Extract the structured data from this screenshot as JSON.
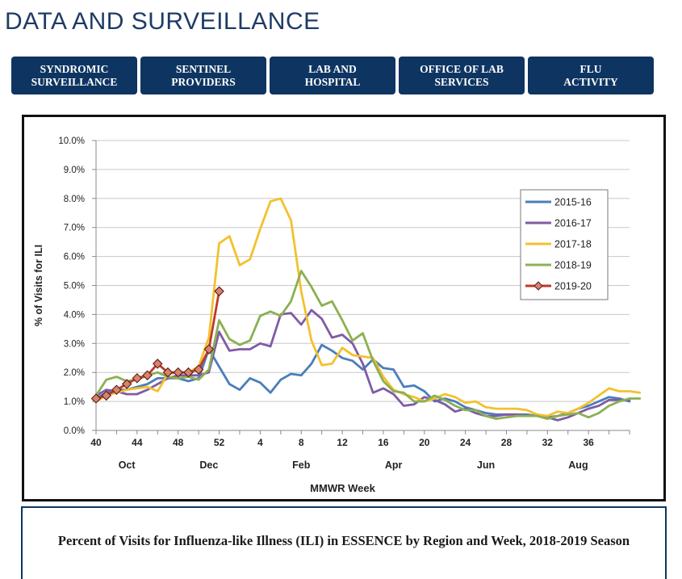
{
  "page": {
    "title": "DATA AND SURVEILLANCE"
  },
  "nav": {
    "buttons": [
      {
        "label": "SYNDROMIC\nSURVEILLANCE"
      },
      {
        "label": "SENTINEL\nPROVIDERS"
      },
      {
        "label": "LAB AND\nHOSPITAL"
      },
      {
        "label": "OFFICE OF LAB\nSERVICES"
      },
      {
        "label": "FLU\nACTIVITY"
      }
    ]
  },
  "caption": "Percent of Visits for Influenza-like Illness (ILI) in ESSENCE by Region and Week, 2018-2019 Season",
  "chart_data": {
    "type": "line",
    "title": "",
    "xlabel": "MMWR Week",
    "ylabel": "% of Visits for ILI",
    "ylim": [
      0,
      10
    ],
    "yticks": [
      "0.0%",
      "1.0%",
      "2.0%",
      "3.0%",
      "4.0%",
      "5.0%",
      "6.0%",
      "7.0%",
      "8.0%",
      "9.0%",
      "10.0%"
    ],
    "xticks": [
      "40",
      "44",
      "48",
      "52",
      "4",
      "8",
      "12",
      "16",
      "20",
      "24",
      "28",
      "32",
      "36"
    ],
    "months": [
      "Oct",
      "Dec",
      "Feb",
      "Apr",
      "Jun",
      "Aug"
    ],
    "legend_position": "top-right",
    "grid": true,
    "series": [
      {
        "name": "2015-16",
        "color": "#4a7ebb",
        "values": [
          1.1,
          1.3,
          1.4,
          1.4,
          1.5,
          1.6,
          1.8,
          1.8,
          1.8,
          1.7,
          1.8,
          2.8,
          2.2,
          1.6,
          1.4,
          1.8,
          1.65,
          1.3,
          1.75,
          1.95,
          1.9,
          2.3,
          2.95,
          2.75,
          2.5,
          2.4,
          2.1,
          2.45,
          2.15,
          2.1,
          1.5,
          1.55,
          1.35,
          1.0,
          1.1,
          1.0,
          0.8,
          0.7,
          0.6,
          0.55,
          0.55,
          0.55,
          0.55,
          0.5,
          0.45,
          0.5,
          0.6,
          0.75,
          0.85,
          1.0,
          1.15,
          1.1,
          1.0
        ]
      },
      {
        "name": "2016-17",
        "color": "#7f5ba6",
        "values": [
          1.2,
          1.4,
          1.35,
          1.25,
          1.25,
          1.4,
          1.6,
          1.8,
          1.9,
          1.9,
          1.9,
          2.0,
          3.4,
          2.75,
          2.8,
          2.8,
          3.0,
          2.9,
          4.0,
          4.05,
          3.65,
          4.15,
          3.85,
          3.2,
          3.3,
          3.0,
          2.3,
          1.3,
          1.45,
          1.25,
          0.85,
          0.9,
          1.15,
          1.05,
          0.9,
          0.65,
          0.75,
          0.6,
          0.5,
          0.5,
          0.55,
          0.55,
          0.5,
          0.5,
          0.45,
          0.35,
          0.45,
          0.6,
          0.75,
          0.85,
          1.05,
          1.05,
          1.05
        ]
      },
      {
        "name": "2017-18",
        "color": "#f3c12c",
        "values": [
          1.0,
          1.2,
          1.3,
          1.4,
          1.45,
          1.5,
          1.35,
          1.95,
          2.0,
          2.0,
          2.2,
          3.2,
          6.45,
          6.7,
          5.7,
          5.9,
          6.95,
          7.9,
          8.0,
          7.25,
          4.8,
          3.1,
          2.25,
          2.3,
          2.85,
          2.6,
          2.55,
          2.5,
          1.85,
          1.4,
          1.25,
          1.15,
          1.0,
          1.1,
          1.25,
          1.15,
          0.95,
          1.0,
          0.8,
          0.75,
          0.75,
          0.75,
          0.7,
          0.55,
          0.5,
          0.65,
          0.6,
          0.75,
          0.95,
          1.2,
          1.45,
          1.35,
          1.35,
          1.3
        ]
      },
      {
        "name": "2018-19",
        "color": "#8cb052",
        "values": [
          1.2,
          1.75,
          1.85,
          1.7,
          1.75,
          1.9,
          2.0,
          1.85,
          1.8,
          1.85,
          1.75,
          2.1,
          3.8,
          3.15,
          2.95,
          3.1,
          3.95,
          4.1,
          3.95,
          4.45,
          5.5,
          4.95,
          4.3,
          4.45,
          3.8,
          3.1,
          3.35,
          2.4,
          1.7,
          1.35,
          1.3,
          1.0,
          1.0,
          1.2,
          1.05,
          0.85,
          0.7,
          0.7,
          0.5,
          0.4,
          0.45,
          0.5,
          0.5,
          0.5,
          0.4,
          0.5,
          0.55,
          0.6,
          0.45,
          0.6,
          0.85,
          1.0,
          1.1,
          1.1
        ]
      },
      {
        "name": "2019-20",
        "color": "#c0392b",
        "values": [
          1.1,
          1.2,
          1.4,
          1.6,
          1.8,
          1.9,
          2.3,
          2.0,
          2.0,
          2.0,
          2.1,
          2.8,
          4.8
        ]
      }
    ]
  }
}
